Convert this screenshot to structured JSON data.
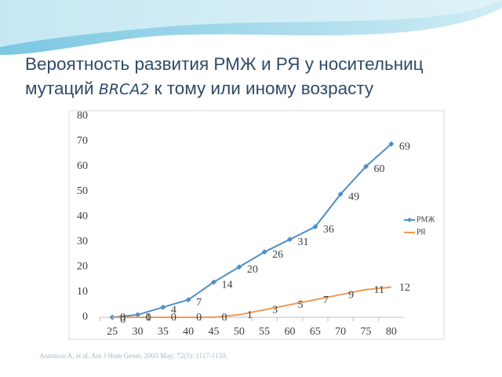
{
  "chart_data": {
    "type": "line",
    "title_parts": [
      "Вероятность развития РМЖ и РЯ у носительниц мутаций ",
      "BRCA2",
      " к тому или иному возрасту"
    ],
    "categories": [
      "25",
      "30",
      "35",
      "40",
      "45",
      "50",
      "55",
      "60",
      "65",
      "70",
      "75",
      "80"
    ],
    "series": [
      {
        "name": "РМЖ",
        "color": "#4f8fc6",
        "values": [
          0,
          1,
          4,
          7,
          14,
          20,
          26,
          31,
          36,
          49,
          60,
          69
        ]
      },
      {
        "name": "РЯ",
        "color": "#ef9a55",
        "values": [
          0,
          0,
          0,
          0,
          0,
          1,
          3,
          5,
          7,
          9,
          11,
          12
        ]
      }
    ],
    "ylim": [
      0,
      80
    ],
    "yticks": [
      0,
      10,
      20,
      30,
      40,
      50,
      60,
      70,
      80
    ],
    "legend": "right",
    "source": "Antoniou A, et al. Am J Hum Genet. 2003 May; 72(5): 1117-1130."
  }
}
